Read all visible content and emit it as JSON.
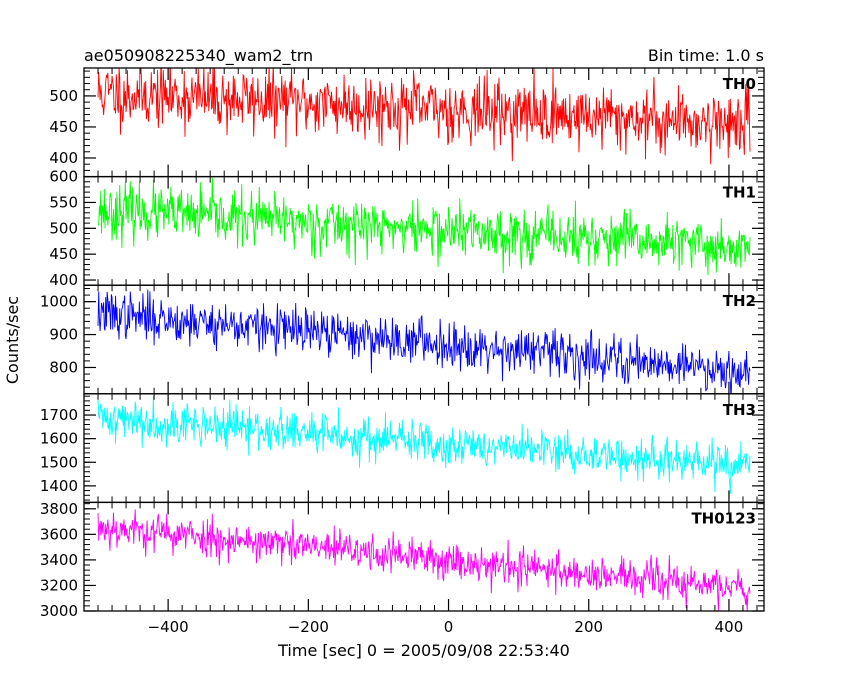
{
  "chart_data": {
    "type": "line",
    "title_left": "ae050908225340_wam2_trn",
    "title_right": "Bin time: 1.0 s",
    "xlabel": "Time [sec] 0 = 2005/09/08 22:53:40",
    "ylabel": "Counts/sec",
    "xlim": [
      -520,
      450
    ],
    "x_ticks": [
      -400,
      -200,
      0,
      200,
      400
    ],
    "x_range": [
      -500,
      430
    ],
    "panels": [
      {
        "name": "TH0",
        "color": "#ff0000",
        "ylim": [
          370,
          545
        ],
        "y_ticks": [
          400,
          450,
          500
        ],
        "trend": [
          505,
          455
        ],
        "noise": 26,
        "seed": 11
      },
      {
        "name": "TH1",
        "color": "#00ff00",
        "ylim": [
          390,
          600
        ],
        "y_ticks": [
          400,
          450,
          500,
          550,
          600
        ],
        "trend": [
          535,
          462
        ],
        "noise": 26,
        "seed": 23
      },
      {
        "name": "TH2",
        "color": "#0000ff",
        "ylim": [
          720,
          1050
        ],
        "y_ticks": [
          800,
          900,
          1000
        ],
        "trend": [
          965,
          790
        ],
        "noise": 35,
        "seed": 37
      },
      {
        "name": "TH3",
        "color": "#00ffff",
        "ylim": [
          1330,
          1790
        ],
        "y_ticks": [
          1400,
          1500,
          1600,
          1700
        ],
        "trend": [
          1690,
          1480
        ],
        "noise": 45,
        "seed": 41
      },
      {
        "name": "TH0123",
        "color": "#ff00ff",
        "ylim": [
          3000,
          3850
        ],
        "y_ticks": [
          3000,
          3200,
          3400,
          3600,
          3800
        ],
        "trend": [
          3660,
          3170
        ],
        "noise": 75,
        "seed": 53
      }
    ]
  }
}
